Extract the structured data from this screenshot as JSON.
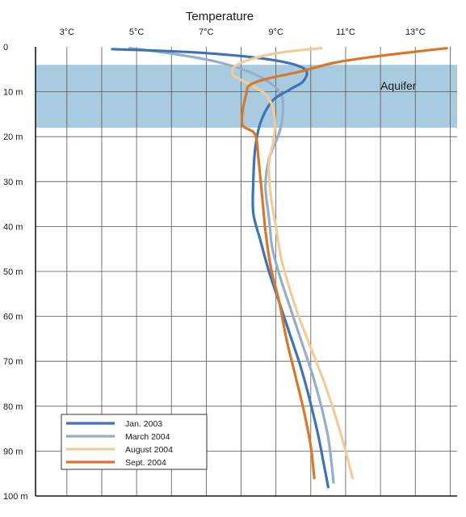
{
  "chart_data": {
    "type": "line",
    "title": "Temperature",
    "xlabel": "",
    "ylabel": "",
    "x_tick_labels": [
      "3°C",
      "5°C",
      "7°C",
      "9°C",
      "11°C",
      "13°C"
    ],
    "x_ticks": [
      3,
      5,
      7,
      9,
      11,
      13
    ],
    "xlim": [
      2.1,
      14.2
    ],
    "y_tick_labels": [
      "0",
      "10  m",
      "20  m",
      "30  m",
      "40  m",
      "50  m",
      "60  m",
      "70  m",
      "80  m",
      "90  m",
      "100 m"
    ],
    "y_ticks": [
      0,
      10,
      20,
      30,
      40,
      50,
      60,
      70,
      80,
      90,
      100
    ],
    "ylim": [
      0,
      100
    ],
    "y_inverted": true,
    "grid": true,
    "band": {
      "label": "Aquifer",
      "from": 4,
      "to": 18,
      "color": "#a9cbe0"
    },
    "legend_position": "bottom-left",
    "series": [
      {
        "name": "Jan. 2003",
        "color": "#3c74b6",
        "points": [
          [
            4.3,
            0.5
          ],
          [
            6.8,
            1.3
          ],
          [
            8.8,
            2.8
          ],
          [
            9.8,
            4.8
          ],
          [
            9.8,
            7.5
          ],
          [
            9.4,
            9.5
          ],
          [
            8.9,
            12
          ],
          [
            8.55,
            17
          ],
          [
            8.4,
            23
          ],
          [
            8.35,
            30
          ],
          [
            8.35,
            37
          ],
          [
            8.55,
            43
          ],
          [
            8.8,
            50
          ],
          [
            9.1,
            57
          ],
          [
            9.4,
            64
          ],
          [
            9.7,
            71
          ],
          [
            9.95,
            78
          ],
          [
            10.2,
            86
          ],
          [
            10.4,
            94
          ],
          [
            10.5,
            98
          ]
        ]
      },
      {
        "name": "March 2004",
        "color": "#96aecb",
        "points": [
          [
            4.8,
            0.3
          ],
          [
            6.0,
            1.5
          ],
          [
            7.4,
            3.5
          ],
          [
            8.5,
            6.5
          ],
          [
            9.1,
            10
          ],
          [
            9.2,
            14
          ],
          [
            9.1,
            19
          ],
          [
            8.8,
            25
          ],
          [
            8.7,
            31
          ],
          [
            8.8,
            38
          ],
          [
            8.9,
            45
          ],
          [
            9.15,
            52
          ],
          [
            9.45,
            59
          ],
          [
            9.75,
            66
          ],
          [
            10.05,
            73
          ],
          [
            10.3,
            80
          ],
          [
            10.5,
            87
          ],
          [
            10.6,
            93
          ],
          [
            10.65,
            97
          ]
        ]
      },
      {
        "name": "August 2004",
        "color": "#f1cc9a",
        "points": [
          [
            10.3,
            0.3
          ],
          [
            9.2,
            1.2
          ],
          [
            8.3,
            2.7
          ],
          [
            7.8,
            4.5
          ],
          [
            7.8,
            6.5
          ],
          [
            8.3,
            8.5
          ],
          [
            8.75,
            11
          ],
          [
            8.95,
            15
          ],
          [
            8.95,
            20
          ],
          [
            8.8,
            26
          ],
          [
            8.85,
            33
          ],
          [
            9.0,
            40
          ],
          [
            9.15,
            47
          ],
          [
            9.4,
            54
          ],
          [
            9.7,
            61
          ],
          [
            10.05,
            68
          ],
          [
            10.4,
            75
          ],
          [
            10.7,
            82
          ],
          [
            11.0,
            90
          ],
          [
            11.2,
            96
          ]
        ]
      },
      {
        "name": "Sept. 2004",
        "color": "#d9772a",
        "points": [
          [
            13.9,
            0.3
          ],
          [
            12.0,
            2
          ],
          [
            10.7,
            3.5
          ],
          [
            9.7,
            5.5
          ],
          [
            8.8,
            7
          ],
          [
            8.25,
            8.5
          ],
          [
            8.15,
            10.5
          ],
          [
            8.05,
            14
          ],
          [
            8.05,
            17.5
          ],
          [
            8.4,
            19.5
          ],
          [
            8.5,
            25
          ],
          [
            8.6,
            33
          ],
          [
            8.7,
            41
          ],
          [
            8.85,
            49
          ],
          [
            9.1,
            57
          ],
          [
            9.3,
            65
          ],
          [
            9.55,
            73
          ],
          [
            9.8,
            81
          ],
          [
            10.0,
            89
          ],
          [
            10.1,
            96
          ]
        ]
      }
    ]
  }
}
